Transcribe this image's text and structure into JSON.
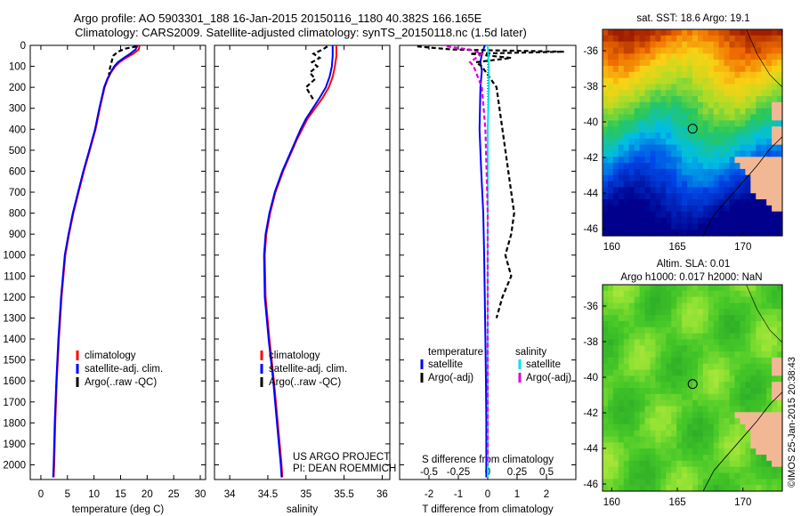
{
  "header": {
    "line1": "Argo profile: AO 5903301_188 16-Jan-2015 20150116_1180 40.382S 166.165E",
    "line2": "Climatology: CARS2009. Satellite-adjusted climatology: synTS_20150118.nc (1.5d later)"
  },
  "colors": {
    "climatology": "#ff0000",
    "satellite": "#0000ff",
    "argo": "#000000",
    "sal_satellite": "#00e5e5",
    "sal_argo": "#e000e0",
    "land": "#f2b896"
  },
  "chart_data": [
    {
      "type": "line",
      "xlabel": "temperature (deg C)",
      "ylabel": "",
      "xlim": [
        -2,
        31
      ],
      "ylim": [
        2070,
        0
      ],
      "xticks": [
        "0",
        "5",
        "10",
        "15",
        "20",
        "25",
        "30"
      ],
      "yticks": [
        "0",
        "100",
        "200",
        "300",
        "400",
        "500",
        "600",
        "700",
        "800",
        "900",
        "1000",
        "1100",
        "1200",
        "1300",
        "1400",
        "1500",
        "1600",
        "1700",
        "1800",
        "1900",
        "2000"
      ],
      "grid": false,
      "legend": {
        "placement": "lower-center",
        "entries": [
          "climatology",
          "satellite-adj. clim.",
          "Argo(..raw -QC)"
        ]
      },
      "series": [
        {
          "name": "climatology",
          "color": "#ff0000",
          "dash": "",
          "depth": [
            0,
            20,
            40,
            60,
            80,
            100,
            130,
            160,
            200,
            300,
            400,
            500,
            600,
            700,
            800,
            900,
            1000,
            1200,
            1400,
            1600,
            1800,
            2000,
            2060
          ],
          "values": [
            18.6,
            18.4,
            17.4,
            16.0,
            14.8,
            14.0,
            13.2,
            12.6,
            12.0,
            11.1,
            10.3,
            9.2,
            8.1,
            7.1,
            6.1,
            5.3,
            4.6,
            3.9,
            3.4,
            3.0,
            2.7,
            2.5,
            2.4
          ]
        },
        {
          "name": "satellite-adj. clim.",
          "color": "#0000ff",
          "dash": "",
          "depth": [
            0,
            20,
            40,
            60,
            80,
            100,
            130,
            160,
            200,
            300,
            400,
            500,
            600,
            700,
            800,
            900,
            1000,
            1200,
            1400,
            1600,
            1800,
            2000,
            2060
          ],
          "values": [
            18.2,
            17.8,
            16.8,
            15.6,
            14.5,
            13.8,
            13.1,
            12.5,
            11.9,
            11.0,
            10.2,
            9.1,
            8.0,
            7.0,
            6.0,
            5.2,
            4.5,
            3.8,
            3.3,
            2.9,
            2.6,
            2.4,
            2.3
          ]
        },
        {
          "name": "Argo(..raw -QC)",
          "color": "#000000",
          "dash": "5,3",
          "depth": [
            5,
            15,
            30,
            50,
            70,
            90,
            110,
            140
          ],
          "values": [
            18.0,
            16.0,
            14.5,
            13.6,
            13.4,
            13.2,
            13.0,
            12.8
          ]
        }
      ]
    },
    {
      "type": "line",
      "xlabel": "salinity",
      "ylabel": "",
      "xlim": [
        33.8,
        36.1
      ],
      "ylim": [
        2070,
        0
      ],
      "xticks": [
        "34",
        "34.5",
        "35",
        "35.5",
        "36"
      ],
      "grid": false,
      "legend": {
        "placement": "lower-center",
        "entries": [
          "climatology",
          "satellite-adj. clim.",
          "Argo(..raw -QC)"
        ]
      },
      "annotations": [
        "US ARGO PROJECT",
        "PI: DEAN ROEMMICH"
      ],
      "series": [
        {
          "name": "climatology",
          "color": "#ff0000",
          "dash": "",
          "depth": [
            0,
            50,
            100,
            150,
            200,
            250,
            300,
            350,
            400,
            450,
            500,
            600,
            700,
            800,
            900,
            1000,
            1200,
            1400,
            1600,
            1800,
            2000,
            2060
          ],
          "values": [
            35.4,
            35.4,
            35.38,
            35.35,
            35.3,
            35.22,
            35.12,
            35.02,
            34.95,
            34.88,
            34.82,
            34.7,
            34.6,
            34.53,
            34.48,
            34.46,
            34.47,
            34.52,
            34.58,
            34.63,
            34.68,
            34.69
          ]
        },
        {
          "name": "satellite-adj. clim.",
          "color": "#0000ff",
          "dash": "",
          "depth": [
            0,
            50,
            100,
            150,
            200,
            250,
            300,
            350,
            400,
            450,
            500,
            600,
            700,
            800,
            900,
            1000,
            1200,
            1400,
            1600,
            1800,
            2000,
            2060
          ],
          "values": [
            35.35,
            35.35,
            35.34,
            35.31,
            35.26,
            35.18,
            35.09,
            35.0,
            34.93,
            34.87,
            34.81,
            34.69,
            34.59,
            34.52,
            34.47,
            34.45,
            34.46,
            34.51,
            34.57,
            34.62,
            34.67,
            34.68
          ]
        },
        {
          "name": "Argo(..raw -QC)",
          "color": "#000000",
          "dash": "5,3",
          "depth": [
            5,
            20,
            40,
            60,
            80,
            100,
            130,
            160,
            200,
            260
          ],
          "values": [
            35.28,
            35.22,
            35.1,
            35.18,
            35.08,
            35.15,
            35.05,
            35.12,
            35.0,
            35.1
          ]
        }
      ]
    },
    {
      "type": "line",
      "xlabel": "T difference from climatology",
      "ylabel": "",
      "xlim": [
        -3.0,
        3.0
      ],
      "ylim": [
        2070,
        0
      ],
      "xticks": [
        "-2",
        "-1",
        "0",
        "1",
        "2"
      ],
      "secondary_axis": {
        "label": "S difference from climatology",
        "ticks": [
          "-0.5",
          "-0.25",
          "0",
          "0.25",
          "0.5"
        ]
      },
      "grid": false,
      "legend": {
        "placement": "lower-center",
        "titles": [
          "temperature",
          "salinity"
        ],
        "entries": [
          "satellite",
          "Argo(-adj)",
          "satellite",
          "Argo(-adj)"
        ]
      },
      "series": [
        {
          "name": "satellite",
          "color": "#0000ff",
          "dash": "",
          "depth": [
            0,
            40,
            80,
            120,
            200,
            400,
            600,
            800,
            1000,
            1200,
            1400,
            1600,
            1800,
            2000,
            2060
          ],
          "values": [
            -0.1,
            -0.2,
            -0.25,
            -0.2,
            -0.25,
            -0.28,
            -0.22,
            -0.15,
            -0.12,
            -0.1,
            -0.08,
            -0.06,
            -0.05,
            -0.05,
            -0.05
          ]
        },
        {
          "name": "Argo(-adj)",
          "color": "#000000",
          "dash": "5,3",
          "depth": [
            5,
            20,
            30,
            40,
            60,
            80,
            100,
            200,
            400,
            600,
            800,
            900,
            1000,
            1100,
            1200,
            1300
          ],
          "values": [
            -2.4,
            -1.2,
            2.6,
            -0.6,
            0.8,
            -0.4,
            -0.2,
            0.3,
            0.5,
            0.7,
            0.9,
            0.8,
            0.6,
            0.8,
            0.5,
            0.3
          ]
        },
        {
          "name": "satellite",
          "color": "#00e5e5",
          "dash": "",
          "depth": [
            0,
            100,
            200,
            400,
            600,
            800,
            1000,
            1400,
            1800,
            2060
          ],
          "values": [
            0.0,
            0.01,
            0.01,
            0.0,
            0.0,
            0.0,
            0.0,
            0.0,
            0.0,
            0.0
          ]
        },
        {
          "name": "Argo(-adj)",
          "color": "#e000e0",
          "dash": "5,3",
          "depth": [
            5,
            20,
            40,
            60,
            80,
            100,
            200,
            400,
            600,
            800,
            1000,
            1200,
            1400,
            1600,
            1800,
            2000
          ],
          "values": [
            -0.35,
            -0.15,
            -0.05,
            -0.1,
            -0.15,
            -0.12,
            -0.05,
            -0.02,
            -0.01,
            0.0,
            0.0,
            0.0,
            0.0,
            0.0,
            0.0,
            0.0
          ]
        }
      ]
    },
    {
      "type": "heatmap",
      "title": "sat. SST: 18.6 Argo: 19.1",
      "xlim": [
        159.3,
        173.0
      ],
      "ylim": [
        -46.4,
        -34.8
      ],
      "xticks": [
        "160",
        "165",
        "170"
      ],
      "yticks": [
        "-36",
        "-38",
        "-40",
        "-42",
        "-44",
        "-46"
      ],
      "marker": {
        "lon": 166.165,
        "lat": -40.382
      },
      "grid": false
    },
    {
      "type": "heatmap",
      "title": "Altim. SLA: 0.01",
      "subtitle": "Argo h1000: 0.017 h2000: NaN",
      "xlim": [
        159.3,
        173.0
      ],
      "ylim": [
        -46.4,
        -34.8
      ],
      "xticks": [
        "160",
        "165",
        "170"
      ],
      "yticks": [
        "-36",
        "-38",
        "-40",
        "-42",
        "-44",
        "-46"
      ],
      "marker": {
        "lon": 166.165,
        "lat": -40.382
      },
      "grid": false
    }
  ],
  "watermark": "©IMOS 25-Jan-2015 20:38:43"
}
